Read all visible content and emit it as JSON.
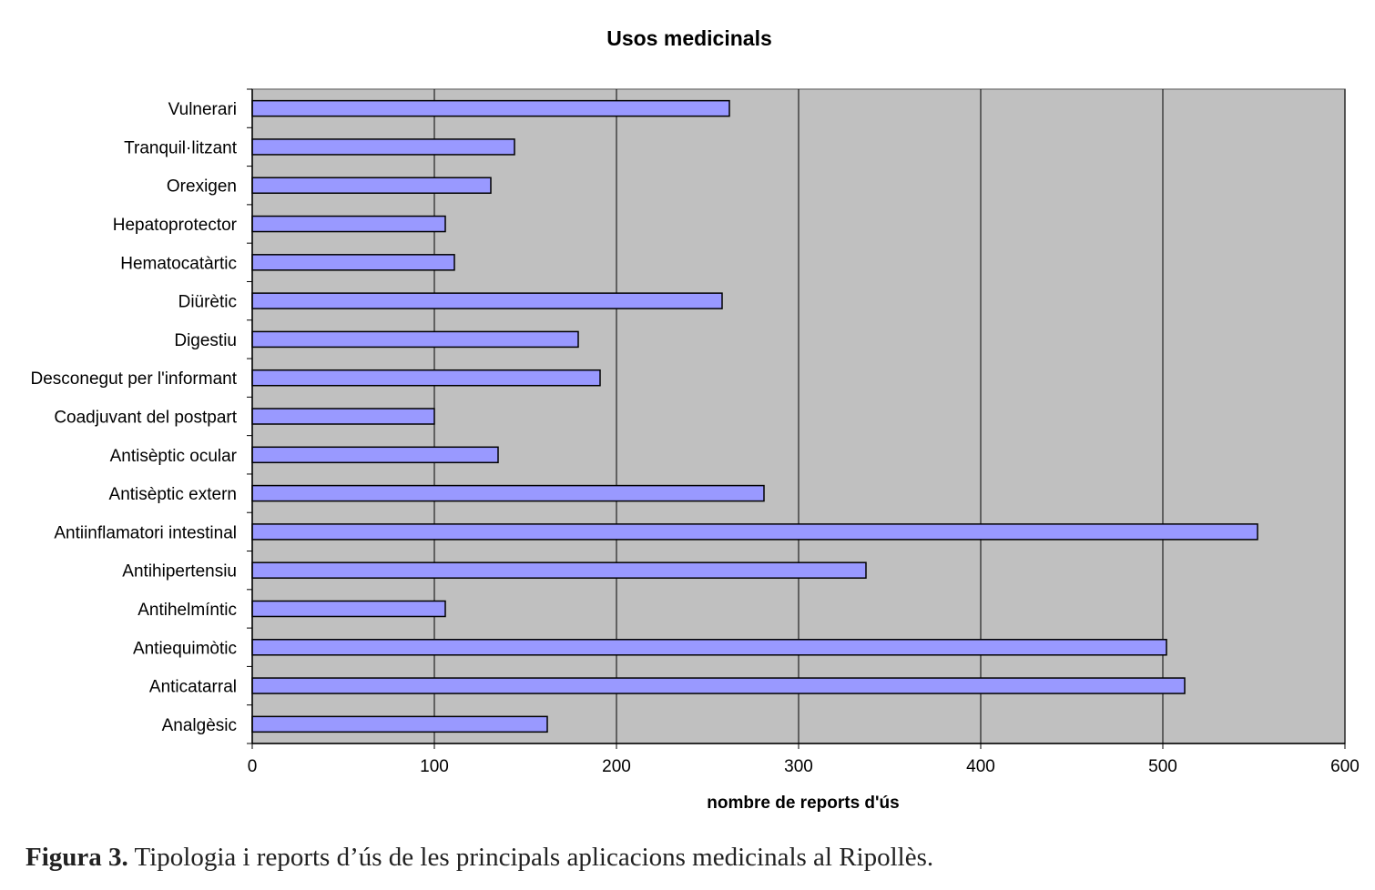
{
  "chart_data": {
    "type": "bar",
    "orientation": "horizontal",
    "title": "Usos medicinals",
    "xlabel": "nombre de reports d'ús",
    "ylabel": "",
    "categories": [
      "Vulnerari",
      "Tranquil·litzant",
      "Orexigen",
      "Hepatoprotector",
      "Hematocatàrtic",
      "Diürètic",
      "Digestiu",
      "Desconegut per l'informant",
      "Coadjuvant del postpart",
      "Antisèptic ocular",
      "Antisèptic extern",
      "Antiinflamatori intestinal",
      "Antihipertensiu",
      "Antihelmíntic",
      "Antiequimòtic",
      "Anticatarral",
      "Analgèsic"
    ],
    "values": [
      262,
      144,
      131,
      106,
      111,
      258,
      179,
      191,
      100,
      135,
      281,
      552,
      337,
      106,
      502,
      512,
      162
    ],
    "xlim": [
      0,
      600
    ],
    "xticks": [
      0,
      100,
      200,
      300,
      400,
      500,
      600
    ],
    "grid": true,
    "colors": {
      "bar": "#9999ff",
      "bar_border": "#000000",
      "plot_background": "#c0c0c0",
      "gridline": "#000000"
    }
  },
  "caption": {
    "label": "Figura 3.",
    "text": " Tipologia i reports d’ús de les principals aplicacions medicinals al Ripollès."
  }
}
